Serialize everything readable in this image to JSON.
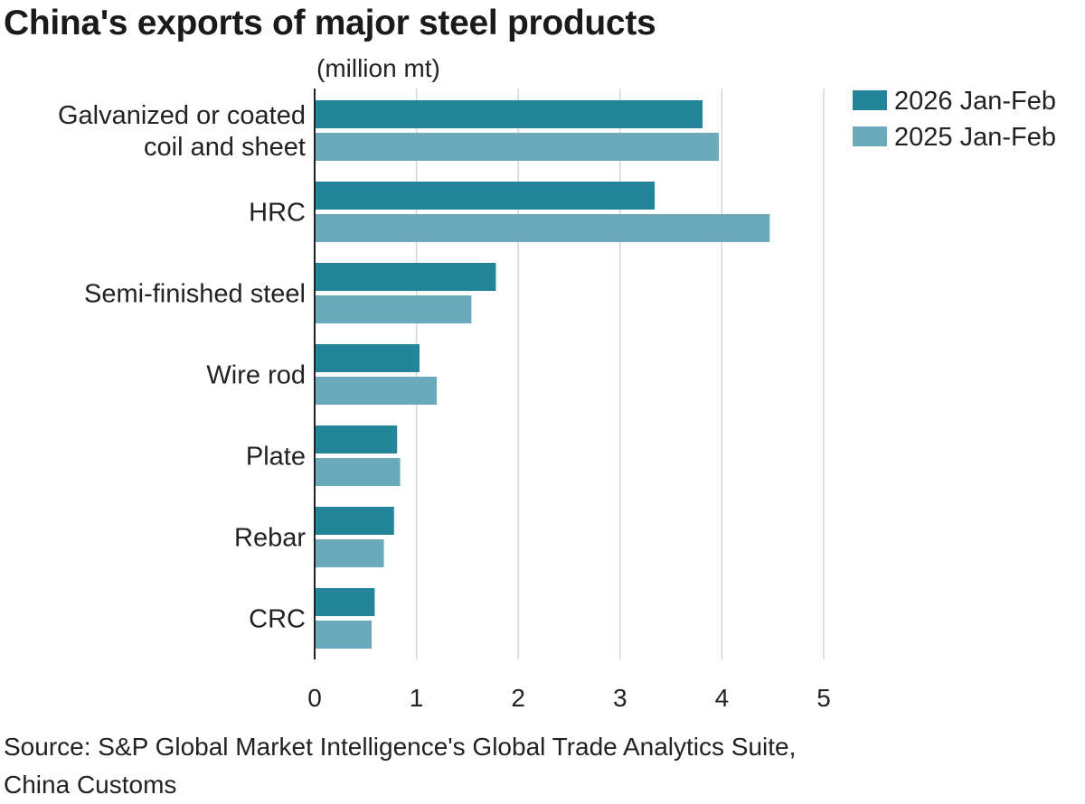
{
  "header": {
    "title": "China's exports of major steel products",
    "unit": "(million mt)"
  },
  "source": {
    "line1": "Source: S&P Global Market Intelligence's Global Trade Analytics Suite,",
    "line2": "China Customs"
  },
  "colors": {
    "series_2026": "#23849a",
    "series_2025": "#6aaabc",
    "gridline": "#d6d6d6",
    "axis": "#222222"
  },
  "chart_data": {
    "type": "bar",
    "orientation": "horizontal",
    "title": "China's exports of major steel products",
    "xlabel": "(million mt)",
    "ylabel": "",
    "xlim": [
      0,
      5
    ],
    "xticks": [
      0,
      1,
      2,
      3,
      4,
      5
    ],
    "grid": true,
    "legend_position": "top-right",
    "categories": [
      [
        "Galvanized or coated",
        "coil and sheet"
      ],
      [
        "HRC"
      ],
      [
        "Semi-finished steel"
      ],
      [
        "Wire rod"
      ],
      [
        "Plate"
      ],
      [
        "Rebar"
      ],
      [
        "CRC"
      ]
    ],
    "series": [
      {
        "name": "2026 Jan-Feb",
        "values": [
          3.81,
          3.34,
          1.78,
          1.03,
          0.81,
          0.78,
          0.59
        ]
      },
      {
        "name": "2025 Jan-Feb",
        "values": [
          3.97,
          4.47,
          1.54,
          1.2,
          0.84,
          0.68,
          0.56
        ]
      }
    ]
  }
}
